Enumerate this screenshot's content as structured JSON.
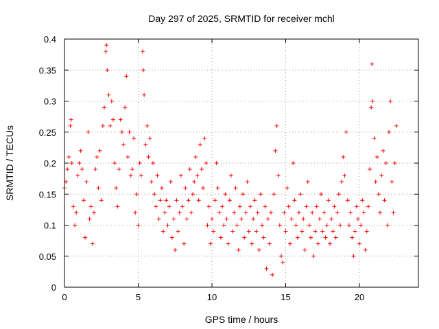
{
  "chart_data": {
    "type": "scatter",
    "title": "Day 297 of 2025, SRMTID for receiver mchl",
    "xlabel": "GPS time / hours",
    "ylabel": "SRMTID / TECUs",
    "xlim": [
      0,
      24
    ],
    "ylim": [
      0,
      0.4
    ],
    "xticks": [
      0,
      5,
      10,
      15,
      20
    ],
    "yticks": [
      0,
      0.05,
      0.1,
      0.15,
      0.2,
      0.25,
      0.3,
      0.35,
      0.4
    ],
    "xtick_labels": [
      "0",
      "5",
      "10",
      "15",
      "20"
    ],
    "ytick_labels": [
      "0",
      "0.05",
      "0.1",
      "0.15",
      "0.2",
      "0.25",
      "0.3",
      "0.35",
      "0.4"
    ],
    "grid": true,
    "marker": "+",
    "color": "#ff0000",
    "series": [
      {
        "name": "SRMTID",
        "points": [
          [
            0.0,
            0.16
          ],
          [
            0.1,
            0.17
          ],
          [
            0.2,
            0.19
          ],
          [
            0.3,
            0.21
          ],
          [
            0.4,
            0.26
          ],
          [
            0.45,
            0.27
          ],
          [
            0.5,
            0.2
          ],
          [
            0.6,
            0.13
          ],
          [
            0.7,
            0.1
          ],
          [
            0.8,
            0.12
          ],
          [
            0.9,
            0.18
          ],
          [
            1.0,
            0.2
          ],
          [
            1.1,
            0.22
          ],
          [
            1.2,
            0.19
          ],
          [
            1.3,
            0.14
          ],
          [
            1.4,
            0.08
          ],
          [
            1.5,
            0.17
          ],
          [
            1.6,
            0.25
          ],
          [
            1.7,
            0.11
          ],
          [
            1.8,
            0.13
          ],
          [
            1.9,
            0.07
          ],
          [
            2.0,
            0.12
          ],
          [
            2.1,
            0.19
          ],
          [
            2.2,
            0.21
          ],
          [
            2.3,
            0.16
          ],
          [
            2.4,
            0.22
          ],
          [
            2.5,
            0.14
          ],
          [
            2.6,
            0.26
          ],
          [
            2.7,
            0.29
          ],
          [
            2.8,
            0.38
          ],
          [
            2.85,
            0.39
          ],
          [
            2.9,
            0.35
          ],
          [
            3.0,
            0.31
          ],
          [
            3.1,
            0.26
          ],
          [
            3.2,
            0.3
          ],
          [
            3.3,
            0.27
          ],
          [
            3.4,
            0.2
          ],
          [
            3.5,
            0.16
          ],
          [
            3.6,
            0.13
          ],
          [
            3.7,
            0.19
          ],
          [
            3.8,
            0.27
          ],
          [
            3.9,
            0.25
          ],
          [
            4.0,
            0.23
          ],
          [
            4.1,
            0.29
          ],
          [
            4.2,
            0.34
          ],
          [
            4.3,
            0.21
          ],
          [
            4.4,
            0.25
          ],
          [
            4.5,
            0.18
          ],
          [
            4.6,
            0.19
          ],
          [
            4.7,
            0.24
          ],
          [
            4.8,
            0.12
          ],
          [
            4.9,
            0.15
          ],
          [
            5.0,
            0.1
          ],
          [
            5.1,
            0.2
          ],
          [
            5.2,
            0.18
          ],
          [
            5.3,
            0.38
          ],
          [
            5.35,
            0.35
          ],
          [
            5.4,
            0.31
          ],
          [
            5.5,
            0.23
          ],
          [
            5.6,
            0.26
          ],
          [
            5.7,
            0.21
          ],
          [
            5.8,
            0.24
          ],
          [
            5.9,
            0.17
          ],
          [
            6.0,
            0.2
          ],
          [
            6.1,
            0.15
          ],
          [
            6.2,
            0.13
          ],
          [
            6.3,
            0.18
          ],
          [
            6.4,
            0.11
          ],
          [
            6.5,
            0.14
          ],
          [
            6.6,
            0.16
          ],
          [
            6.7,
            0.09
          ],
          [
            6.8,
            0.12
          ],
          [
            6.9,
            0.14
          ],
          [
            7.0,
            0.1
          ],
          [
            7.1,
            0.13
          ],
          [
            7.2,
            0.17
          ],
          [
            7.3,
            0.08
          ],
          [
            7.4,
            0.11
          ],
          [
            7.5,
            0.06
          ],
          [
            7.6,
            0.14
          ],
          [
            7.7,
            0.09
          ],
          [
            7.8,
            0.12
          ],
          [
            7.9,
            0.18
          ],
          [
            8.0,
            0.13
          ],
          [
            8.1,
            0.07
          ],
          [
            8.2,
            0.16
          ],
          [
            8.3,
            0.11
          ],
          [
            8.4,
            0.14
          ],
          [
            8.5,
            0.19
          ],
          [
            8.6,
            0.12
          ],
          [
            8.7,
            0.15
          ],
          [
            8.8,
            0.17
          ],
          [
            8.9,
            0.21
          ],
          [
            9.0,
            0.18
          ],
          [
            9.1,
            0.14
          ],
          [
            9.2,
            0.23
          ],
          [
            9.3,
            0.19
          ],
          [
            9.4,
            0.16
          ],
          [
            9.5,
            0.24
          ],
          [
            9.6,
            0.2
          ],
          [
            9.7,
            0.1
          ],
          [
            9.8,
            0.13
          ],
          [
            9.9,
            0.07
          ],
          [
            10.0,
            0.11
          ],
          [
            10.1,
            0.09
          ],
          [
            10.2,
            0.14
          ],
          [
            10.3,
            0.2
          ],
          [
            10.4,
            0.16
          ],
          [
            10.5,
            0.12
          ],
          [
            10.6,
            0.08
          ],
          [
            10.7,
            0.13
          ],
          [
            10.8,
            0.1
          ],
          [
            10.9,
            0.15
          ],
          [
            11.0,
            0.11
          ],
          [
            11.1,
            0.07
          ],
          [
            11.2,
            0.14
          ],
          [
            11.3,
            0.18
          ],
          [
            11.4,
            0.09
          ],
          [
            11.5,
            0.12
          ],
          [
            11.6,
            0.16
          ],
          [
            11.7,
            0.1
          ],
          [
            11.8,
            0.06
          ],
          [
            11.9,
            0.13
          ],
          [
            12.0,
            0.11
          ],
          [
            12.1,
            0.15
          ],
          [
            12.2,
            0.08
          ],
          [
            12.3,
            0.12
          ],
          [
            12.4,
            0.17
          ],
          [
            12.5,
            0.09
          ],
          [
            12.6,
            0.13
          ],
          [
            12.7,
            0.07
          ],
          [
            12.8,
            0.11
          ],
          [
            12.9,
            0.14
          ],
          [
            13.0,
            0.09
          ],
          [
            13.1,
            0.12
          ],
          [
            13.2,
            0.06
          ],
          [
            13.3,
            0.15
          ],
          [
            13.4,
            0.1
          ],
          [
            13.5,
            0.08
          ],
          [
            13.6,
            0.13
          ],
          [
            13.7,
            0.03
          ],
          [
            13.8,
            0.11
          ],
          [
            13.9,
            0.07
          ],
          [
            14.0,
            0.12
          ],
          [
            14.1,
            0.02
          ],
          [
            14.2,
            0.15
          ],
          [
            14.3,
            0.22
          ],
          [
            14.4,
            0.26
          ],
          [
            14.5,
            0.18
          ],
          [
            14.6,
            0.1
          ],
          [
            14.7,
            0.05
          ],
          [
            14.8,
            0.04
          ],
          [
            14.9,
            0.12
          ],
          [
            15.0,
            0.09
          ],
          [
            15.1,
            0.16
          ],
          [
            15.2,
            0.13
          ],
          [
            15.3,
            0.07
          ],
          [
            15.4,
            0.11
          ],
          [
            15.5,
            0.2
          ],
          [
            15.6,
            0.14
          ],
          [
            15.7,
            0.1
          ],
          [
            15.8,
            0.08
          ],
          [
            15.9,
            0.12
          ],
          [
            16.0,
            0.15
          ],
          [
            16.1,
            0.09
          ],
          [
            16.2,
            0.11
          ],
          [
            16.3,
            0.06
          ],
          [
            16.4,
            0.13
          ],
          [
            16.5,
            0.17
          ],
          [
            16.6,
            0.1
          ],
          [
            16.7,
            0.08
          ],
          [
            16.8,
            0.12
          ],
          [
            16.9,
            0.05
          ],
          [
            17.0,
            0.09
          ],
          [
            17.1,
            0.13
          ],
          [
            17.2,
            0.07
          ],
          [
            17.3,
            0.11
          ],
          [
            17.4,
            0.15
          ],
          [
            17.5,
            0.09
          ],
          [
            17.6,
            0.12
          ],
          [
            17.7,
            0.08
          ],
          [
            17.8,
            0.1
          ],
          [
            17.9,
            0.14
          ],
          [
            18.0,
            0.07
          ],
          [
            18.1,
            0.11
          ],
          [
            18.2,
            0.09
          ],
          [
            18.3,
            0.13
          ],
          [
            18.4,
            0.08
          ],
          [
            18.5,
            0.12
          ],
          [
            18.6,
            0.15
          ],
          [
            18.7,
            0.1
          ],
          [
            18.8,
            0.17
          ],
          [
            18.9,
            0.21
          ],
          [
            19.0,
            0.18
          ],
          [
            19.1,
            0.25
          ],
          [
            19.2,
            0.14
          ],
          [
            19.3,
            0.1
          ],
          [
            19.4,
            0.12
          ],
          [
            19.5,
            0.08
          ],
          [
            19.6,
            0.05
          ],
          [
            19.7,
            0.09
          ],
          [
            19.8,
            0.13
          ],
          [
            19.9,
            0.11
          ],
          [
            20.0,
            0.07
          ],
          [
            20.1,
            0.1
          ],
          [
            20.2,
            0.14
          ],
          [
            20.3,
            0.12
          ],
          [
            20.4,
            0.06
          ],
          [
            20.5,
            0.09
          ],
          [
            20.6,
            0.13
          ],
          [
            20.7,
            0.19
          ],
          [
            20.8,
            0.29
          ],
          [
            20.85,
            0.36
          ],
          [
            20.9,
            0.3
          ],
          [
            21.0,
            0.24
          ],
          [
            21.1,
            0.17
          ],
          [
            21.2,
            0.21
          ],
          [
            21.3,
            0.15
          ],
          [
            21.4,
            0.12
          ],
          [
            21.5,
            0.18
          ],
          [
            21.6,
            0.22
          ],
          [
            21.7,
            0.14
          ],
          [
            21.8,
            0.2
          ],
          [
            21.9,
            0.1
          ],
          [
            22.0,
            0.25
          ],
          [
            22.1,
            0.3
          ],
          [
            22.2,
            0.17
          ],
          [
            22.3,
            0.12
          ],
          [
            22.4,
            0.2
          ],
          [
            22.5,
            0.26
          ]
        ]
      }
    ]
  }
}
